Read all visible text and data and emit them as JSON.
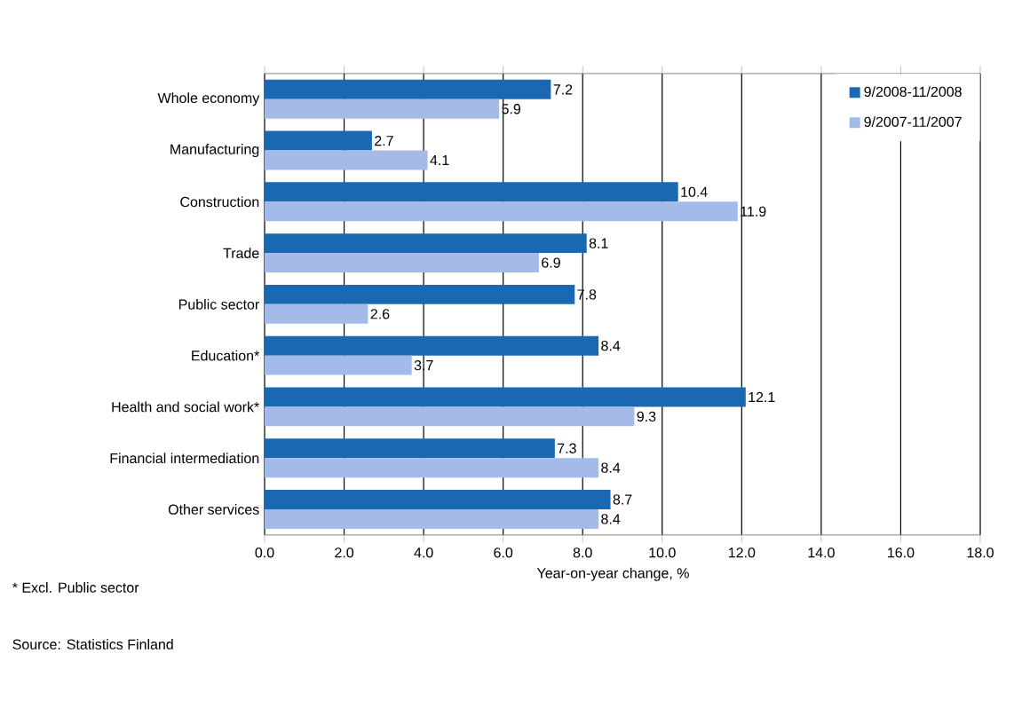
{
  "chart_data": {
    "type": "bar",
    "orientation": "horizontal",
    "xlabel": "Year-on-year change, %",
    "categories": [
      "Whole economy",
      "Manufacturing",
      "Construction",
      "Trade",
      "Public sector",
      "Education*",
      "Health and social work*",
      "Financial intermediation",
      "Other services"
    ],
    "series": [
      {
        "name": "9/2008-11/2008",
        "color": "#1a68b2",
        "values": [
          7.2,
          2.7,
          10.4,
          8.1,
          7.8,
          8.4,
          12.1,
          7.3,
          8.7
        ]
      },
      {
        "name": "9/2007-11/2007",
        "color": "#a4bbea",
        "values": [
          5.9,
          4.1,
          11.9,
          6.9,
          2.6,
          3.7,
          9.3,
          8.4,
          8.4
        ]
      }
    ],
    "xlim": [
      0,
      18
    ],
    "xticks": [
      {
        "value": 0,
        "label": "0.0"
      },
      {
        "value": 2,
        "label": "2.0"
      },
      {
        "value": 4,
        "label": "4.0"
      },
      {
        "value": 6,
        "label": "6.0"
      },
      {
        "value": 8,
        "label": "8.0"
      },
      {
        "value": 10,
        "label": "10.0"
      },
      {
        "value": 12,
        "label": "12.0"
      },
      {
        "value": 14,
        "label": "14.0"
      },
      {
        "value": 16,
        "label": "16.0"
      },
      {
        "value": 18,
        "label": "18.0"
      }
    ],
    "grid": "x",
    "legend": "top right",
    "data_labels": true,
    "annotations": [
      "* Excl. Public sector",
      "Source: Statistics Finland"
    ]
  }
}
